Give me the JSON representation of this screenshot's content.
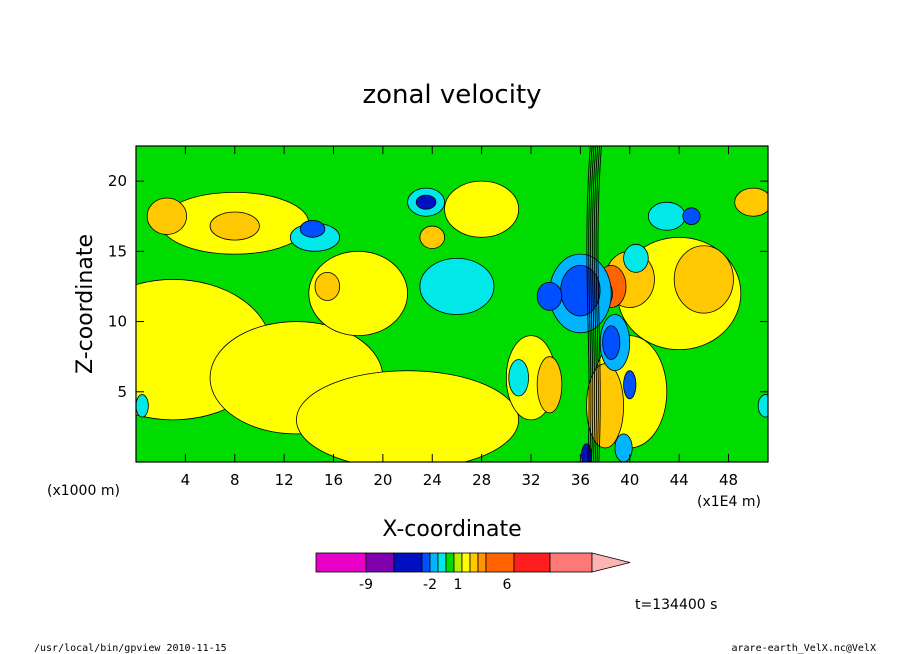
{
  "chart_data": {
    "type": "heatmap",
    "title": "zonal velocity",
    "xlabel": "X-coordinate",
    "ylabel": "Z-coordinate",
    "x_unit_left": "(x1000 m)",
    "x_unit_right": "(x1E4 m)",
    "x_ticks": [
      "4",
      "8",
      "12",
      "16",
      "20",
      "24",
      "28",
      "32",
      "36",
      "40",
      "44",
      "48"
    ],
    "y_ticks": [
      "5",
      "10",
      "15",
      "20"
    ],
    "xlim": [
      0,
      51.2
    ],
    "ylim": [
      0,
      22.5
    ],
    "colorbar": {
      "colors": [
        "#e800c8",
        "#8000b0",
        "#0010c0",
        "#0050ff",
        "#00b4ff",
        "#00e8e8",
        "#00dc00",
        "#b4f000",
        "#ffff00",
        "#ffc800",
        "#ff9600",
        "#ff6400",
        "#ff1e1e",
        "#ff7878",
        "#ffb4b4"
      ],
      "labels": [
        "-9",
        "-2",
        "1",
        "6"
      ]
    },
    "time_label": "t=134400 s"
  },
  "footer": {
    "left": "/usr/local/bin/gpview  2010-11-15",
    "right": "arare-earth_VelX.nc@VelX"
  }
}
